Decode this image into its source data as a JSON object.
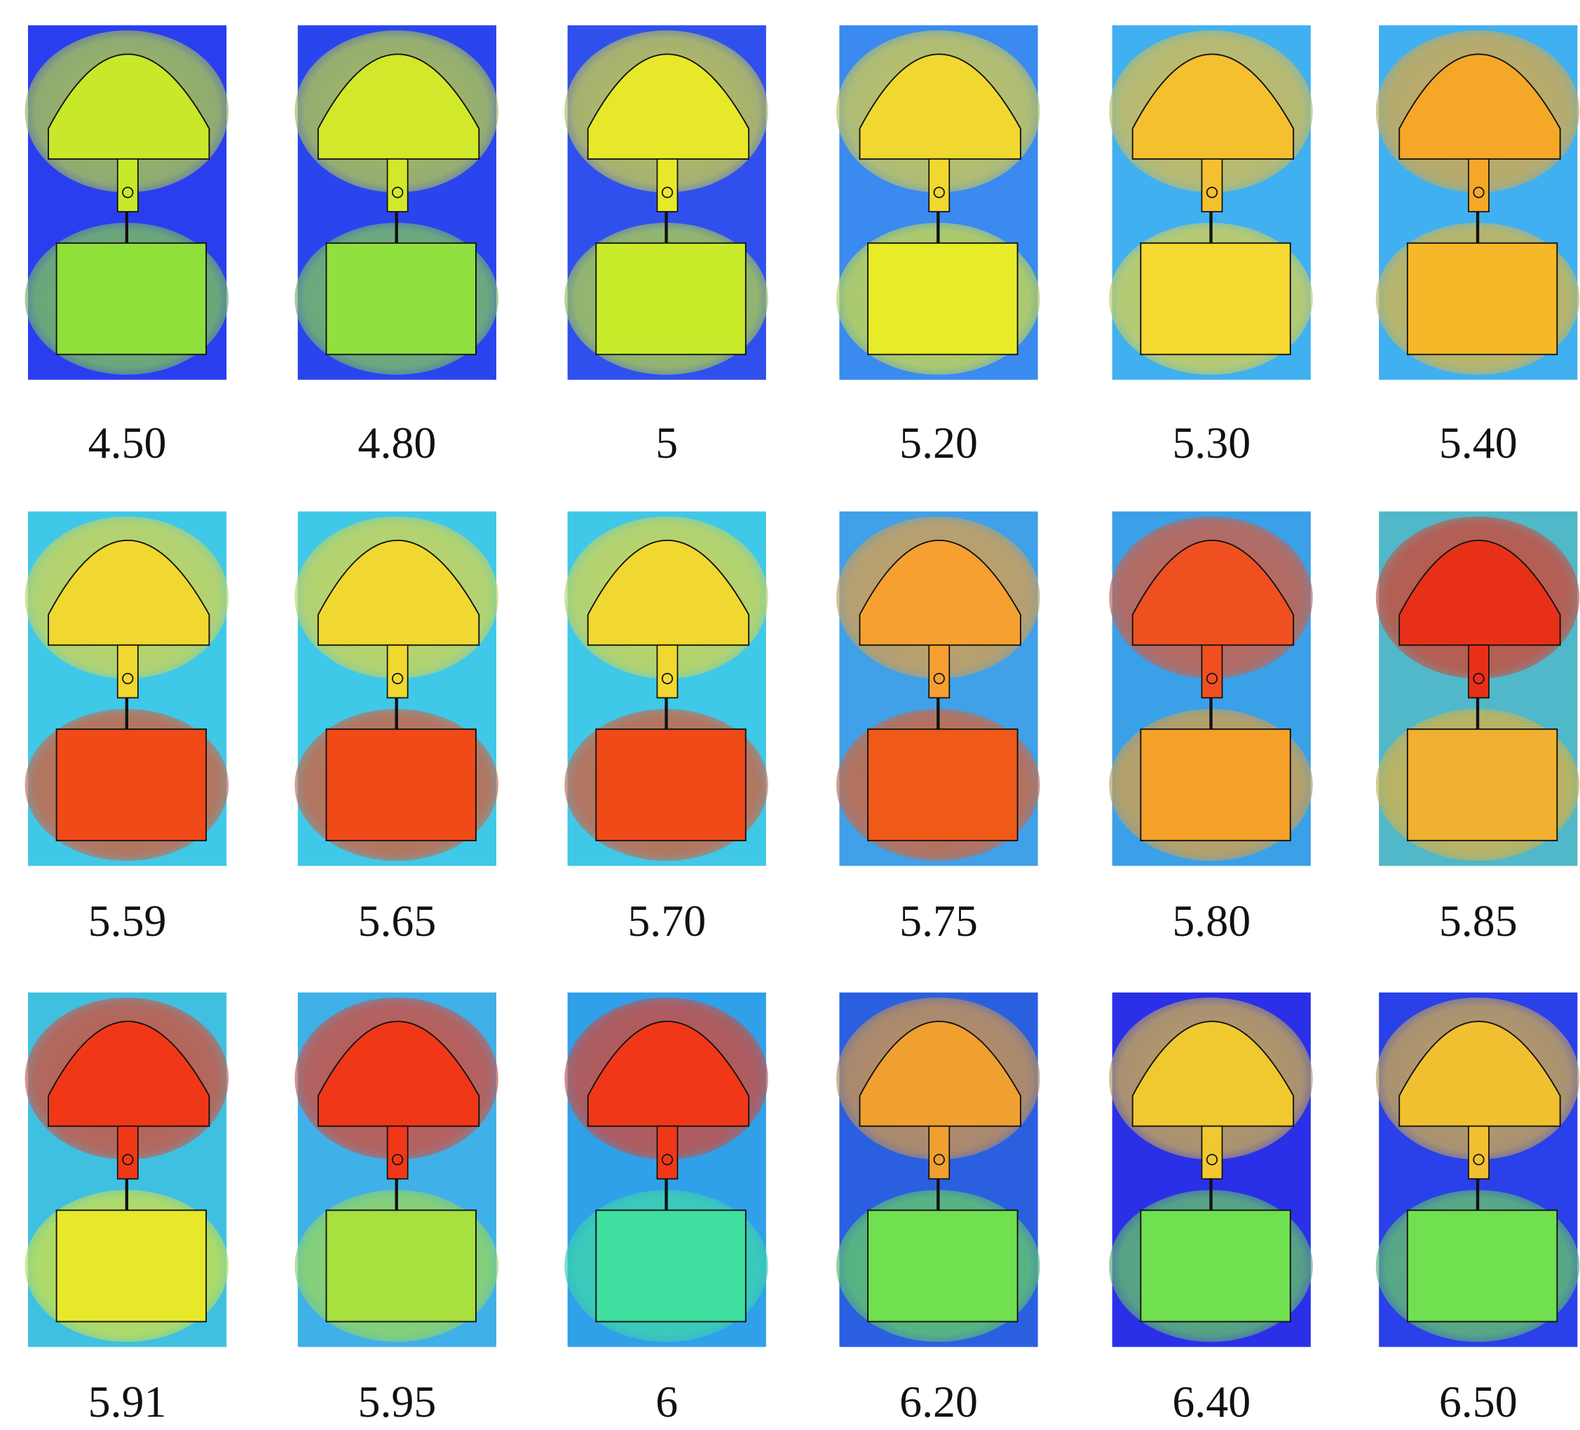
{
  "panels": [
    {
      "label": "4.50",
      "edge": "#2a3ef0",
      "head": "#c8e82a",
      "patch": "#8fe03a"
    },
    {
      "label": "4.80",
      "edge": "#2a45ee",
      "head": "#d2e82a",
      "patch": "#90e040"
    },
    {
      "label": "5",
      "edge": "#3050ee",
      "head": "#e8e82a",
      "patch": "#c8ec2a"
    },
    {
      "label": "5.20",
      "edge": "#3a8af0",
      "head": "#f0d830",
      "patch": "#e8ec28"
    },
    {
      "label": "5.30",
      "edge": "#40b0f0",
      "head": "#f5c030",
      "patch": "#f5d830"
    },
    {
      "label": "5.40",
      "edge": "#40b0f0",
      "head": "#f5a828",
      "patch": "#f5b828"
    },
    {
      "label": "5.59",
      "edge": "#40c8e8",
      "head": "#f0d830",
      "patch": "#f04a18"
    },
    {
      "label": "5.65",
      "edge": "#40c8e8",
      "head": "#f0d830",
      "patch": "#f04a18"
    },
    {
      "label": "5.70",
      "edge": "#40c8e8",
      "head": "#f0d830",
      "patch": "#f04a18"
    },
    {
      "label": "5.75",
      "edge": "#40a0e8",
      "head": "#f5a030",
      "patch": "#f05a18"
    },
    {
      "label": "5.80",
      "edge": "#3aa0e8",
      "head": "#f05020",
      "patch": "#f5a028"
    },
    {
      "label": "5.85",
      "edge": "#50b8c8",
      "head": "#e83018",
      "patch": "#f0b030"
    },
    {
      "label": "5.91",
      "edge": "#40c0e0",
      "head": "#f03818",
      "patch": "#e8e82a"
    },
    {
      "label": "5.95",
      "edge": "#40b0e8",
      "head": "#f03818",
      "patch": "#a8e040"
    },
    {
      "label": "6",
      "edge": "#30a0e8",
      "head": "#f03818",
      "patch": "#40e0a0"
    },
    {
      "label": "6.20",
      "edge": "#2a60e0",
      "head": "#f0a030",
      "patch": "#70e050"
    },
    {
      "label": "6.40",
      "edge": "#2a30e8",
      "head": "#f0c830",
      "patch": "#70e050"
    },
    {
      "label": "6.50",
      "edge": "#2a40e8",
      "head": "#f0c030",
      "patch": "#70e050"
    }
  ]
}
